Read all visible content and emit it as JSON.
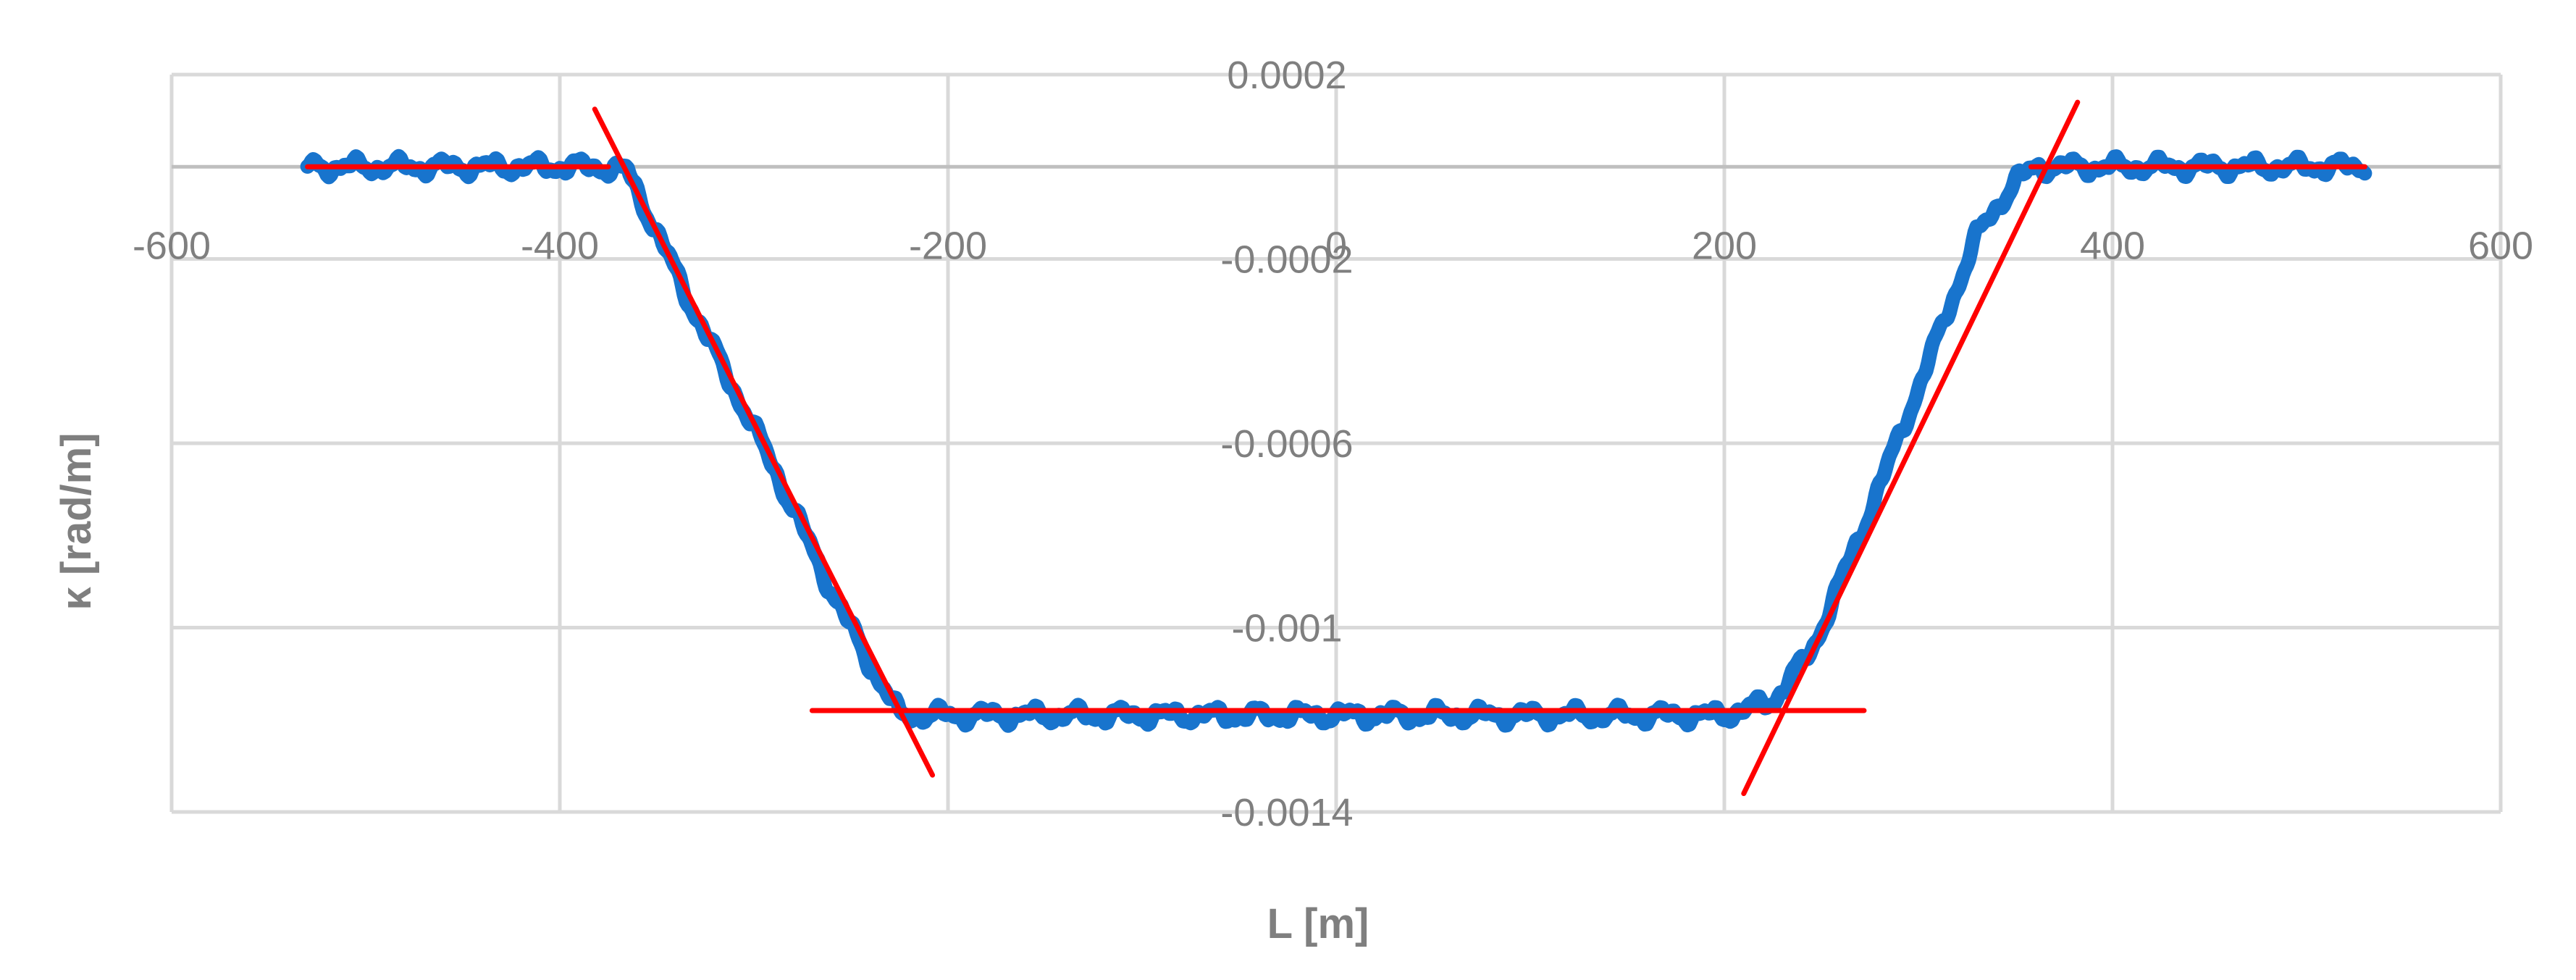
{
  "chart_data": {
    "type": "line",
    "xlabel": "L [m]",
    "ylabel": "κ [rad/m]",
    "xlim": [
      -600,
      600
    ],
    "ylim": [
      -0.0014,
      0.0002
    ],
    "x_ticks": [
      -600,
      -400,
      -200,
      0,
      200,
      400,
      600
    ],
    "x_tick_labels": [
      "-600",
      "-400",
      "-200",
      "0",
      "200",
      "400",
      "600"
    ],
    "y_ticks": [
      0.0002,
      -0.0002,
      -0.0006,
      -0.001,
      -0.0014
    ],
    "y_tick_labels": [
      "0.0002",
      "-0.0002",
      "-0.0006",
      "-0.001",
      "-0.0014"
    ],
    "grid": true,
    "legend": "none",
    "series": [
      {
        "color": "#1874cd",
        "style": "noisy-measured",
        "x": [
          -530,
          -380,
          -365,
          -330,
          -290,
          -260,
          -240,
          -225,
          -200,
          0,
          200,
          225,
          245,
          270,
          300,
          330,
          350,
          362,
          380,
          530
        ],
        "y": [
          0,
          0,
          -1e-05,
          -0.00032,
          -0.00065,
          -0.00092,
          -0.00108,
          -0.00119,
          -0.00119,
          -0.00119,
          -0.00119,
          -0.00116,
          -0.00105,
          -0.0008,
          -0.00048,
          -0.00015,
          -3e-05,
          0,
          0,
          0
        ],
        "noise_amplitude": 2.2e-05
      },
      {
        "color": "#ff0000",
        "style": "fit-segment",
        "x": [
          -530,
          -375
        ],
        "y": [
          0,
          0
        ]
      },
      {
        "color": "#ff0000",
        "style": "fit-segment",
        "x": [
          -382,
          -208
        ],
        "y": [
          0.000125,
          -0.00132
        ]
      },
      {
        "color": "#ff0000",
        "style": "fit-segment",
        "x": [
          -270,
          272
        ],
        "y": [
          -0.00118,
          -0.00118
        ]
      },
      {
        "color": "#ff0000",
        "style": "fit-segment",
        "x": [
          210,
          382
        ],
        "y": [
          -0.00136,
          0.00014
        ]
      },
      {
        "color": "#ff0000",
        "style": "fit-segment",
        "x": [
          358,
          530
        ],
        "y": [
          0,
          0
        ]
      }
    ]
  }
}
